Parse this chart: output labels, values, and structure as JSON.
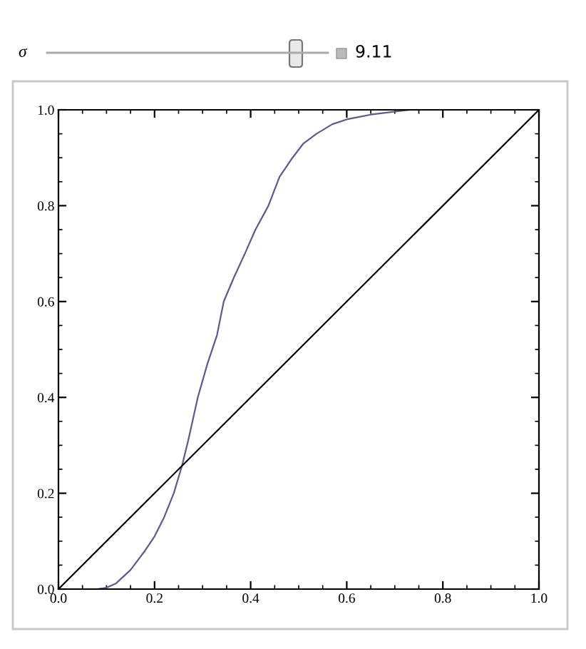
{
  "chart_data": {
    "type": "line",
    "annotations": [
      "σ",
      "9.11"
    ],
    "series": [
      {
        "color": "#5b5b8f",
        "x": [
          0,
          0.08,
          0.1,
          0.12,
          0.15,
          0.18,
          0.2,
          0.22,
          0.24,
          0.257,
          0.27,
          0.29,
          0.31,
          0.33,
          0.344,
          0.365,
          0.388,
          0.41,
          0.437,
          0.46,
          0.487,
          0.51,
          0.537,
          0.57,
          0.6,
          0.65,
          0.73
        ],
        "values": [
          0,
          0,
          0.003,
          0.012,
          0.04,
          0.08,
          0.11,
          0.15,
          0.2,
          0.257,
          0.31,
          0.4,
          0.47,
          0.53,
          0.6,
          0.65,
          0.7,
          0.75,
          0.8,
          0.86,
          0.9,
          0.93,
          0.95,
          0.97,
          0.98,
          0.99,
          1.0
        ]
      },
      {
        "color": "#000000",
        "x": [
          0,
          1
        ],
        "values": [
          0,
          1
        ]
      }
    ],
    "xlim": [
      0,
      1
    ],
    "ylim": [
      0,
      1
    ],
    "xticks": [
      {
        "value": 0,
        "label": "0.0"
      },
      0.2,
      0.4,
      0.6,
      0.8,
      {
        "value": 1,
        "label": "1.0"
      }
    ],
    "yticks": [
      {
        "value": 0,
        "label": "0.0"
      },
      0.2,
      0.4,
      0.6,
      0.8,
      {
        "value": 1,
        "label": "1.0"
      }
    ],
    "grid": false,
    "legend": false,
    "marker": "none",
    "line_style": "solid"
  }
}
